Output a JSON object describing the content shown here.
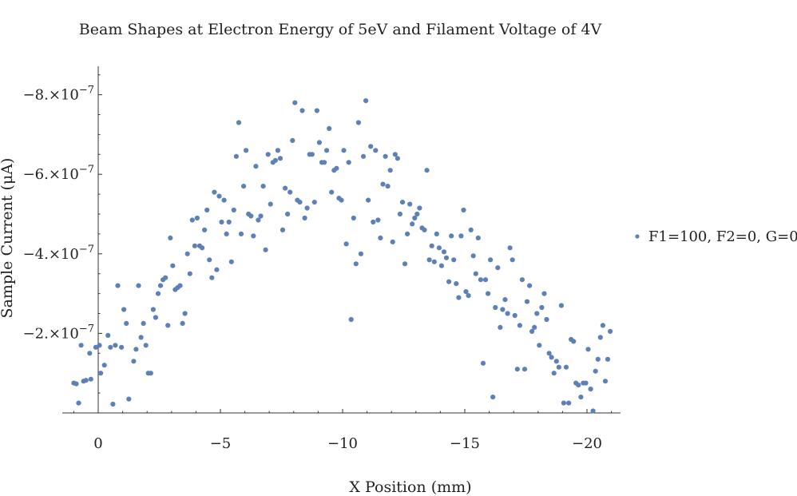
{
  "chart_data": {
    "type": "scatter",
    "title": "Beam Shapes at Electron Energy of 5eV and Filament Voltage of 4V",
    "xlabel": "X Position (mm)",
    "ylabel": "Sample Current (μA)",
    "x_reversed": true,
    "y_reversed": true,
    "xlim": [
      1.4,
      -21.4
    ],
    "ylim": [
      0,
      -8.8e-07
    ],
    "x_ticks": [
      {
        "value": 0,
        "label": "0"
      },
      {
        "value": -5,
        "label": "−5"
      },
      {
        "value": -10,
        "label": "−10"
      },
      {
        "value": -15,
        "label": "−15"
      },
      {
        "value": -20,
        "label": "−20"
      }
    ],
    "y_ticks": [
      {
        "value": -2e-07,
        "mantissa": "−2.×10",
        "exponent": "−7"
      },
      {
        "value": -4e-07,
        "mantissa": "−4.×10",
        "exponent": "−7"
      },
      {
        "value": -6e-07,
        "mantissa": "−6.×10",
        "exponent": "−7"
      },
      {
        "value": -8e-07,
        "mantissa": "−8.×10",
        "exponent": "−7"
      }
    ],
    "legend_position": "right",
    "series": [
      {
        "name": "F1=100, F2=0, G=0",
        "color": "#5e81b5",
        "points": [
          [
            1.0,
            -7.5e-08
          ],
          [
            0.9,
            -7.3e-08
          ],
          [
            0.8,
            -2.5e-08
          ],
          [
            0.7,
            -1.7e-07
          ],
          [
            0.6,
            -8e-08
          ],
          [
            0.5,
            -8.2e-08
          ],
          [
            0.35,
            -1.5e-07
          ],
          [
            0.3,
            -8.5e-08
          ],
          [
            0.1,
            -1.65e-07
          ],
          [
            -0.05,
            -1.7e-07
          ],
          [
            -0.1,
            -1e-07
          ],
          [
            -0.25,
            -1.2e-07
          ],
          [
            -0.4,
            -1.95e-07
          ],
          [
            -0.5,
            -1.65e-07
          ],
          [
            -0.6,
            -2.2e-08
          ],
          [
            -0.7,
            -1.7e-07
          ],
          [
            -0.8,
            -3.2e-07
          ],
          [
            -0.95,
            -1.65e-07
          ],
          [
            -1.05,
            -2.6e-07
          ],
          [
            -1.15,
            -2.25e-07
          ],
          [
            -1.25,
            -3.5e-08
          ],
          [
            -1.45,
            -1.3e-07
          ],
          [
            -1.55,
            -1.6e-07
          ],
          [
            -1.65,
            -3.2e-07
          ],
          [
            -1.75,
            -1.9e-07
          ],
          [
            -1.85,
            -2.25e-07
          ],
          [
            -1.95,
            -1.7e-07
          ],
          [
            -2.05,
            -1e-07
          ],
          [
            -2.15,
            -1e-07
          ],
          [
            -2.25,
            -2.6e-07
          ],
          [
            -2.35,
            -2.4e-07
          ],
          [
            -2.45,
            -3e-07
          ],
          [
            -2.55,
            -3.2e-07
          ],
          [
            -2.65,
            -3.35e-07
          ],
          [
            -2.75,
            -3.4e-07
          ],
          [
            -2.85,
            -2.2e-07
          ],
          [
            -2.95,
            -4.4e-07
          ],
          [
            -3.05,
            -3.7e-07
          ],
          [
            -3.15,
            -3.1e-07
          ],
          [
            -3.25,
            -3.15e-07
          ],
          [
            -3.35,
            -3.2e-07
          ],
          [
            -3.45,
            -2.25e-07
          ],
          [
            -3.55,
            -2.5e-07
          ],
          [
            -3.65,
            -4e-07
          ],
          [
            -3.75,
            -3.5e-07
          ],
          [
            -3.85,
            -4.85e-07
          ],
          [
            -3.95,
            -4.2e-07
          ],
          [
            -4.05,
            -4.9e-07
          ],
          [
            -4.15,
            -4.2e-07
          ],
          [
            -4.25,
            -4.15e-07
          ],
          [
            -4.35,
            -4.6e-07
          ],
          [
            -4.45,
            -5.1e-07
          ],
          [
            -4.55,
            -3.85e-07
          ],
          [
            -4.65,
            -3.4e-07
          ],
          [
            -4.75,
            -5.55e-07
          ],
          [
            -4.85,
            -3.6e-07
          ],
          [
            -4.95,
            -5.45e-07
          ],
          [
            -5.05,
            -4.8e-07
          ],
          [
            -5.15,
            -5.35e-07
          ],
          [
            -5.25,
            -4.5e-07
          ],
          [
            -5.35,
            -4.8e-07
          ],
          [
            -5.45,
            -3.8e-07
          ],
          [
            -5.55,
            -5.1e-07
          ],
          [
            -5.65,
            -6.45e-07
          ],
          [
            -5.75,
            -7.3e-07
          ],
          [
            -5.85,
            -4.5e-07
          ],
          [
            -5.95,
            -5.7e-07
          ],
          [
            -6.05,
            -6.6e-07
          ],
          [
            -6.15,
            -5e-07
          ],
          [
            -6.25,
            -4.95e-07
          ],
          [
            -6.35,
            -4.45e-07
          ],
          [
            -6.45,
            -6.2e-07
          ],
          [
            -6.55,
            -4.85e-07
          ],
          [
            -6.65,
            -4.95e-07
          ],
          [
            -6.75,
            -5.7e-07
          ],
          [
            -6.85,
            -4.1e-07
          ],
          [
            -6.95,
            -6.5e-07
          ],
          [
            -7.05,
            -5.25e-07
          ],
          [
            -7.15,
            -6.3e-07
          ],
          [
            -7.25,
            -6.35e-07
          ],
          [
            -7.35,
            -6.6e-07
          ],
          [
            -7.45,
            -6.4e-07
          ],
          [
            -7.55,
            -4.6e-07
          ],
          [
            -7.65,
            -5.65e-07
          ],
          [
            -7.75,
            -5e-07
          ],
          [
            -7.85,
            -5.55e-07
          ],
          [
            -7.95,
            -6.85e-07
          ],
          [
            -8.05,
            -7.8e-07
          ],
          [
            -8.15,
            -5.35e-07
          ],
          [
            -8.25,
            -5.3e-07
          ],
          [
            -8.35,
            -7.6e-07
          ],
          [
            -8.45,
            -4.9e-07
          ],
          [
            -8.55,
            -5.15e-07
          ],
          [
            -8.65,
            -6.5e-07
          ],
          [
            -8.75,
            -6.5e-07
          ],
          [
            -8.85,
            -5.3e-07
          ],
          [
            -8.95,
            -7.6e-07
          ],
          [
            -9.05,
            -6.8e-07
          ],
          [
            -9.15,
            -6.3e-07
          ],
          [
            -9.25,
            -6.3e-07
          ],
          [
            -9.35,
            -6.6e-07
          ],
          [
            -9.45,
            -7.15e-07
          ],
          [
            -9.55,
            -5.55e-07
          ],
          [
            -9.65,
            -6.1e-07
          ],
          [
            -9.75,
            -6.15e-07
          ],
          [
            -9.85,
            -5.4e-07
          ],
          [
            -9.95,
            -5.35e-07
          ],
          [
            -10.05,
            -6.6e-07
          ],
          [
            -10.15,
            -4.25e-07
          ],
          [
            -10.25,
            -6.3e-07
          ],
          [
            -10.35,
            -2.35e-07
          ],
          [
            -10.45,
            -4.9e-07
          ],
          [
            -10.55,
            -3.75e-07
          ],
          [
            -10.65,
            -7.3e-07
          ],
          [
            -10.75,
            -4e-07
          ],
          [
            -10.85,
            -6.45e-07
          ],
          [
            -10.95,
            -7.85e-07
          ],
          [
            -11.05,
            -5.35e-07
          ],
          [
            -11.15,
            -6.7e-07
          ],
          [
            -11.25,
            -4.8e-07
          ],
          [
            -11.35,
            -6.6e-07
          ],
          [
            -11.45,
            -4.85e-07
          ],
          [
            -11.55,
            -4.4e-07
          ],
          [
            -11.65,
            -5.75e-07
          ],
          [
            -11.75,
            -6.45e-07
          ],
          [
            -11.85,
            -5.7e-07
          ],
          [
            -11.95,
            -6.1e-07
          ],
          [
            -12.05,
            -4.3e-07
          ],
          [
            -12.15,
            -6.5e-07
          ],
          [
            -12.25,
            -6.4e-07
          ],
          [
            -12.35,
            -5e-07
          ],
          [
            -12.45,
            -5.3e-07
          ],
          [
            -12.55,
            -3.75e-07
          ],
          [
            -12.65,
            -4.5e-07
          ],
          [
            -12.75,
            -5.25e-07
          ],
          [
            -12.85,
            -4.75e-07
          ],
          [
            -12.95,
            -4.9e-07
          ],
          [
            -13.05,
            -5e-07
          ],
          [
            -13.15,
            -5.15e-07
          ],
          [
            -13.25,
            -4.65e-07
          ],
          [
            -13.35,
            -4.6e-07
          ],
          [
            -13.45,
            -6.1e-07
          ],
          [
            -13.55,
            -3.85e-07
          ],
          [
            -13.65,
            -4.2e-07
          ],
          [
            -13.75,
            -3.8e-07
          ],
          [
            -13.85,
            -4.5e-07
          ],
          [
            -13.95,
            -4.15e-07
          ],
          [
            -14.05,
            -3.7e-07
          ],
          [
            -14.15,
            -4.05e-07
          ],
          [
            -14.25,
            -3.9e-07
          ],
          [
            -14.35,
            -3.3e-07
          ],
          [
            -14.45,
            -4.45e-07
          ],
          [
            -14.55,
            -3.85e-07
          ],
          [
            -14.65,
            -3.25e-07
          ],
          [
            -14.75,
            -2.9e-07
          ],
          [
            -14.85,
            -4.45e-07
          ],
          [
            -14.95,
            -5.1e-07
          ],
          [
            -15.05,
            -3.05e-07
          ],
          [
            -15.15,
            -2.95e-07
          ],
          [
            -15.25,
            -4.6e-07
          ],
          [
            -15.35,
            -3.95e-07
          ],
          [
            -15.45,
            -3.5e-07
          ],
          [
            -15.55,
            -4.4e-07
          ],
          [
            -15.65,
            -3.35e-07
          ],
          [
            -15.75,
            -1.25e-07
          ],
          [
            -15.85,
            -3.35e-07
          ],
          [
            -15.95,
            -3e-07
          ],
          [
            -16.05,
            -3.85e-07
          ],
          [
            -16.15,
            -4e-08
          ],
          [
            -16.25,
            -2.65e-07
          ],
          [
            -16.35,
            -3.65e-07
          ],
          [
            -16.45,
            -2.15e-07
          ],
          [
            -16.55,
            -2.6e-07
          ],
          [
            -16.65,
            -2.85e-07
          ],
          [
            -16.75,
            -2.5e-07
          ],
          [
            -16.85,
            -4.15e-07
          ],
          [
            -16.95,
            -3.85e-07
          ],
          [
            -17.05,
            -2.45e-07
          ],
          [
            -17.15,
            -1.1e-07
          ],
          [
            -17.25,
            -2.2e-07
          ],
          [
            -17.35,
            -3.35e-07
          ],
          [
            -17.45,
            -1.1e-07
          ],
          [
            -17.55,
            -2.8e-07
          ],
          [
            -17.65,
            -3.2e-07
          ],
          [
            -17.75,
            -2.05e-07
          ],
          [
            -17.85,
            -2.15e-07
          ],
          [
            -17.95,
            -2.5e-07
          ],
          [
            -18.05,
            -1.7e-07
          ],
          [
            -18.15,
            -2.65e-07
          ],
          [
            -18.25,
            -3e-07
          ],
          [
            -18.35,
            -2.35e-07
          ],
          [
            -18.45,
            -1.5e-07
          ],
          [
            -18.55,
            -1.4e-07
          ],
          [
            -18.65,
            -1e-07
          ],
          [
            -18.75,
            -1.3e-07
          ],
          [
            -18.85,
            -1.15e-07
          ],
          [
            -18.95,
            -2.7e-07
          ],
          [
            -19.05,
            -2.5e-08
          ],
          [
            -19.15,
            -1.15e-07
          ],
          [
            -19.25,
            -2.5e-08
          ],
          [
            -19.35,
            -1.85e-07
          ],
          [
            -19.45,
            -1.8e-07
          ],
          [
            -19.55,
            -7.5e-08
          ],
          [
            -19.65,
            -7e-08
          ],
          [
            -19.75,
            -4e-08
          ],
          [
            -19.85,
            -7.5e-08
          ],
          [
            -19.95,
            -7.5e-08
          ],
          [
            -20.05,
            -1.6e-07
          ],
          [
            -20.15,
            -6e-08
          ],
          [
            -20.25,
            -5e-09
          ],
          [
            -20.35,
            -1.05e-07
          ],
          [
            -20.45,
            -1.35e-07
          ],
          [
            -20.55,
            -1.9e-07
          ],
          [
            -20.65,
            -2.2e-07
          ],
          [
            -20.75,
            -8e-08
          ],
          [
            -20.85,
            -1.35e-07
          ],
          [
            -20.95,
            -2.05e-07
          ]
        ]
      }
    ]
  }
}
